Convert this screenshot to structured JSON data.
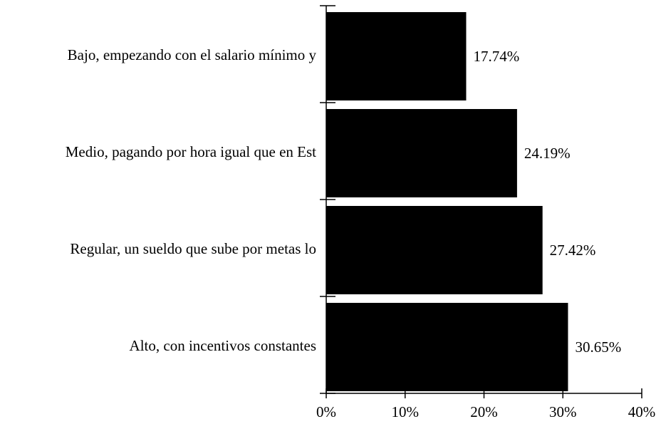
{
  "chart_data": {
    "type": "bar",
    "orientation": "horizontal",
    "categories": [
      "Bajo, empezando con el salario mínimo y",
      "Medio, pagando por hora igual que en Est",
      "Regular, un sueldo que sube por metas lo",
      "Alto, con incentivos constantes"
    ],
    "values": [
      17.74,
      24.19,
      27.42,
      30.65
    ],
    "data_labels": [
      "17.74%",
      "24.19%",
      "27.42%",
      "30.65%"
    ],
    "xlim": [
      0,
      40
    ],
    "x_ticks": [
      0,
      10,
      20,
      30,
      40
    ],
    "x_tick_labels": [
      "0%",
      "10%",
      "20%",
      "30%",
      "40%"
    ],
    "bar_color": "#000000",
    "grid": false,
    "legend": "none"
  }
}
